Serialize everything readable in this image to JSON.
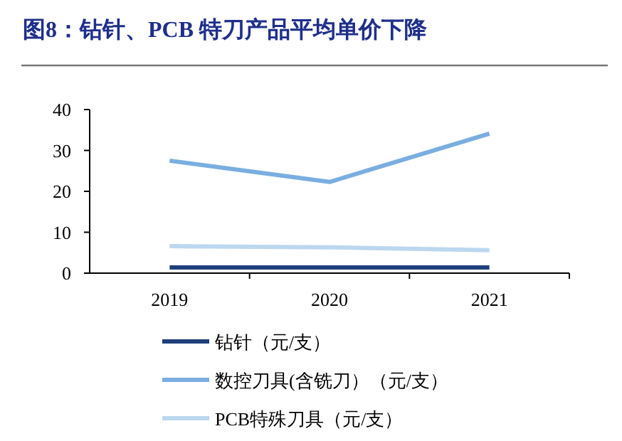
{
  "chart_data": {
    "type": "line",
    "title": "图8：钻针、PCB 特刀产品平均单价下降",
    "categories": [
      "2019",
      "2020",
      "2021"
    ],
    "series": [
      {
        "name": "钻针（元/支）",
        "color": "#1f3f7a",
        "values": [
          1.4,
          1.4,
          1.4
        ]
      },
      {
        "name": "数控刀具(含铣刀）（元/支）",
        "color": "#7aaee0",
        "values": [
          27.5,
          22.3,
          34.1
        ]
      },
      {
        "name": "PCB特殊刀具（元/支）",
        "color": "#bcd7ef",
        "values": [
          6.6,
          6.3,
          5.6
        ]
      }
    ],
    "ylim": [
      0,
      40
    ],
    "yticks": [
      0,
      10,
      20,
      30,
      40
    ],
    "grid": false,
    "legend": "bottom",
    "marker": "none",
    "line_style": "solid"
  }
}
